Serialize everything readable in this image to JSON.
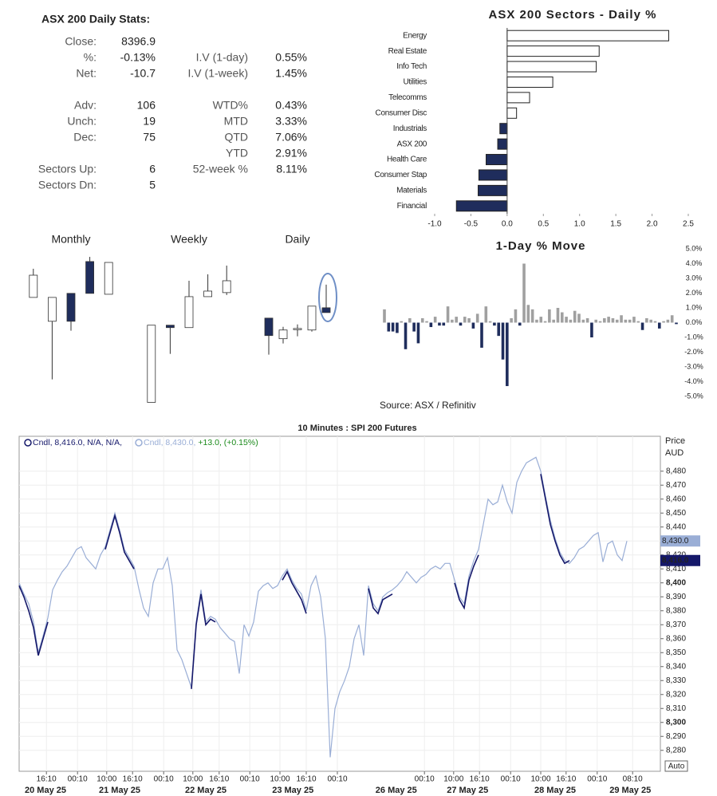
{
  "stats": {
    "title": "ASX 200 Daily Stats:",
    "left": [
      [
        {
          "label": "Close:",
          "value": "8396.9",
          "color": "#222222"
        },
        {
          "label": "%:",
          "value": "-0.13%",
          "color": "#b00000"
        },
        {
          "label": "Net:",
          "value": "-10.7",
          "color": "#b00000"
        }
      ],
      [
        {
          "label": "Adv:",
          "value": "106",
          "color": "#222222"
        },
        {
          "label": "Unch:",
          "value": "19",
          "color": "#777777"
        },
        {
          "label": "Dec:",
          "value": "75",
          "color": "#b00000"
        }
      ],
      [
        {
          "label": "Sectors Up:",
          "value": "6",
          "color": "#222222"
        },
        {
          "label": "Sectors Dn:",
          "value": "5",
          "color": "#b00000"
        }
      ]
    ],
    "right": [
      [
        {
          "label": "I.V (1-day)",
          "value": "0.55%",
          "color": "#222222"
        },
        {
          "label": "I.V (1-week)",
          "value": "1.45%",
          "color": "#222222"
        }
      ],
      [
        {
          "label": "WTD%",
          "value": "0.43%",
          "color": "#222222"
        },
        {
          "label": "MTD",
          "value": "3.33%",
          "color": "#222222"
        },
        {
          "label": "QTD",
          "value": "7.06%",
          "color": "#222222"
        },
        {
          "label": "YTD",
          "value": "2.91%",
          "color": "#222222"
        },
        {
          "label": "52-week %",
          "value": "8.11%",
          "color": "#222222"
        }
      ]
    ]
  },
  "chart_data": [
    {
      "type": "barh",
      "title": "ASX 200 Sectors - Daily %",
      "categories": [
        "Energy",
        "Real Estate",
        "Info Tech",
        "Utilities",
        "Telecomms",
        "Consumer Disc",
        "Industrials",
        "ASX 200",
        "Health Care",
        "Consumer Stap",
        "Materials",
        "Financial"
      ],
      "values": [
        2.23,
        1.27,
        1.23,
        0.63,
        0.31,
        0.13,
        -0.1,
        -0.13,
        -0.29,
        -0.39,
        -0.4,
        -0.7
      ],
      "positive_color": "#ffffff",
      "negative_color": "#1f2d5c",
      "edge_color": "#222222",
      "xlim": [
        -1,
        2.5
      ],
      "xticks": [
        {
          "value": -1,
          "label": "-1.0"
        },
        -0.5,
        {
          "value": 0,
          "label": "0.0"
        },
        0.5,
        {
          "value": 1,
          "label": "1.0"
        },
        1.5,
        {
          "value": 2,
          "label": "2.0"
        },
        2.5
      ]
    },
    {
      "type": "candlestick",
      "title": "Monthly",
      "up_color": "#ffffff",
      "down_color": "#1f2d5c",
      "ylim": [
        7400,
        8600
      ],
      "open": [
        8266,
        8077,
        8298,
        8550,
        8291
      ],
      "high": [
        8493,
        8266,
        8298,
        8587,
        8543
      ],
      "low": [
        8266,
        7617,
        8002,
        8298,
        8291
      ],
      "close": [
        8442,
        8266,
        8077,
        8298,
        8543
      ]
    },
    {
      "type": "candlestick",
      "title": "Weekly",
      "up_color": "#ffffff",
      "down_color": "#1f2d5c",
      "ylim": [
        7400,
        8600
      ],
      "open": [
        7435,
        8046,
        8027,
        8272,
        8304
      ],
      "high": [
        8046,
        8046,
        8398,
        8449,
        8518
      ],
      "low": [
        7435,
        7819,
        8027,
        8272,
        8285
      ],
      "close": [
        8046,
        8027,
        8272,
        8316,
        8398
      ]
    },
    {
      "type": "candlestick",
      "title": "Daily",
      "up_color": "#ffffff",
      "down_color": "#1f2d5c",
      "ylim": [
        7400,
        8600
      ],
      "open": [
        8102,
        7939,
        8014,
        8008,
        8184
      ],
      "high": [
        8102,
        8033,
        8052,
        8197,
        8367
      ],
      "low": [
        7813,
        7901,
        7958,
        7995,
        8146
      ],
      "close": [
        7964,
        8008,
        8020,
        8197,
        8146
      ]
    },
    {
      "type": "bar",
      "title": "1-Day % Move",
      "source": "Source: ASX / Refinitiv",
      "positive_color": "#a0a0a0",
      "negative_color": "#1f2d5c",
      "values": [
        0.9,
        -0.6,
        -0.6,
        -0.7,
        0.1,
        -1.8,
        0.3,
        -0.6,
        -1.4,
        0.3,
        0.1,
        -0.3,
        0.4,
        -0.2,
        -0.2,
        1.1,
        0.2,
        0.4,
        -0.2,
        0.4,
        0.3,
        -0.4,
        0.6,
        -1.7,
        1.1,
        0.1,
        -0.2,
        -0.9,
        -2.5,
        -4.3,
        0.3,
        0.9,
        -0.2,
        4.0,
        1.2,
        0.9,
        0.2,
        0.4,
        0.1,
        0.9,
        0.2,
        1.0,
        0.7,
        0.4,
        0.2,
        0.8,
        0.6,
        0.2,
        0.3,
        -1.0,
        0.2,
        0.1,
        0.3,
        0.4,
        0.3,
        0.2,
        0.5,
        0.2,
        0.2,
        0.4,
        0.1,
        -0.5,
        0.3,
        0.2,
        0.1,
        -0.4,
        0.1,
        0.2,
        0.5,
        -0.1
      ],
      "ylim": [
        -5,
        5
      ],
      "yticks": [
        {
          "value": 5,
          "label": "5.0%"
        },
        {
          "value": 4,
          "label": "4.0%"
        },
        {
          "value": 3,
          "label": "3.0%"
        },
        {
          "value": 2,
          "label": "2.0%"
        },
        {
          "value": 1,
          "label": "1.0%"
        },
        {
          "value": 0,
          "label": "0.0%"
        },
        {
          "value": -1,
          "label": "-1.0%"
        },
        {
          "value": -2,
          "label": "-2.0%"
        },
        {
          "value": -3,
          "label": "-3.0%"
        },
        {
          "value": -4,
          "label": "-4.0%"
        },
        {
          "value": -5,
          "label": "-5.0%"
        }
      ]
    },
    {
      "type": "line",
      "title": "10 Minutes : SPI 200 Futures",
      "y_label": "Price",
      "y_unit": "AUD",
      "auto_button": "Auto",
      "grid": true,
      "series": [
        {
          "name": "Cndl, 8,416.0, N/A, N/A,",
          "color": "#15186a",
          "last_label": "8,416.0",
          "values": [
            8398,
            8390,
            8380,
            8368,
            8348,
            8360,
            8372,
            null,
            null,
            null,
            null,
            null,
            null,
            null,
            null,
            null,
            null,
            null,
            8424,
            8436,
            8448,
            8436,
            8422,
            8416,
            8410,
            null,
            null,
            null,
            null,
            null,
            null,
            null,
            null,
            null,
            null,
            null,
            8324,
            8370,
            8392,
            8370,
            8374,
            8372,
            null,
            null,
            null,
            null,
            null,
            null,
            null,
            null,
            null,
            null,
            null,
            null,
            null,
            8402,
            8408,
            8400,
            8394,
            8388,
            8378,
            null,
            null,
            null,
            null,
            null,
            null,
            null,
            null,
            null,
            null,
            null,
            null,
            8396,
            8382,
            8378,
            8388,
            8390,
            8392,
            null,
            null,
            null,
            null,
            null,
            null,
            null,
            null,
            null,
            null,
            null,
            null,
            8400,
            8388,
            8382,
            8402,
            8412,
            8420,
            null,
            null,
            null,
            null,
            null,
            null,
            null,
            null,
            null,
            null,
            null,
            null,
            8478,
            8460,
            8442,
            8430,
            8420,
            8414,
            8416,
            null,
            null,
            null,
            null,
            null,
            null,
            null,
            null,
            null,
            null,
            null,
            null
          ]
        },
        {
          "name": "Cndl, 8,430.0,",
          "color": "#9aaed6",
          "last_label": "8,430.0",
          "change_label": "+13.0, (+0.15%)",
          "change_color": "#1a8a1a",
          "values": [
            8400,
            8392,
            8385,
            8372,
            8350,
            8362,
            8375,
            8395,
            8402,
            8408,
            8412,
            8418,
            8424,
            8426,
            8418,
            8414,
            8410,
            8420,
            8426,
            8438,
            8450,
            8438,
            8424,
            8418,
            8412,
            8396,
            8382,
            8376,
            8400,
            8410,
            8410,
            8418,
            8398,
            8352,
            8345,
            8335,
            8325,
            8372,
            8395,
            8372,
            8376,
            8374,
            8368,
            8364,
            8360,
            8358,
            8335,
            8370,
            8362,
            8372,
            8394,
            8398,
            8400,
            8396,
            8398,
            8405,
            8410,
            8402,
            8396,
            8392,
            8380,
            8398,
            8405,
            8390,
            8360,
            8275,
            8310,
            8322,
            8330,
            8340,
            8360,
            8370,
            8348,
            8398,
            8385,
            8380,
            8390,
            8393,
            8395,
            8398,
            8402,
            8408,
            8404,
            8400,
            8404,
            8406,
            8410,
            8412,
            8410,
            8414,
            8414,
            8402,
            8390,
            8385,
            8405,
            8416,
            8424,
            8442,
            8460,
            8456,
            8458,
            8470,
            8458,
            8450,
            8472,
            8480,
            8486,
            8488,
            8490,
            8480,
            8462,
            8445,
            8432,
            8422,
            8416,
            8414,
            8418,
            8424,
            8426,
            8430,
            8434,
            8436,
            8415,
            8428,
            8430,
            8420,
            8416,
            8430
          ]
        }
      ],
      "xlim": [
        0,
        134
      ],
      "xticks": [
        {
          "value": 5.7,
          "label": "16:10"
        },
        {
          "value": 12.2,
          "label": "00:10"
        },
        {
          "value": 18.3,
          "label": "10:00"
        },
        {
          "value": 23.7,
          "label": "16:10"
        },
        {
          "value": 30.2,
          "label": "00:10"
        },
        {
          "value": 36.3,
          "label": "10:00"
        },
        {
          "value": 41.8,
          "label": "16:10"
        },
        {
          "value": 48.2,
          "label": "00:10"
        },
        {
          "value": 54.5,
          "label": "10:00"
        },
        {
          "value": 60,
          "label": "16:10"
        },
        {
          "value": 66.5,
          "label": "00:10"
        },
        {
          "value": 84.7,
          "label": "00:10"
        },
        {
          "value": 90.8,
          "label": "10:00"
        },
        {
          "value": 96.2,
          "label": "16:10"
        },
        {
          "value": 102.7,
          "label": "00:10"
        },
        {
          "value": 109,
          "label": "10:00"
        },
        {
          "value": 114.3,
          "label": "16:10"
        },
        {
          "value": 120.8,
          "label": "00:10"
        },
        {
          "value": 128.2,
          "label": "08:10"
        }
      ],
      "date_ticks": [
        {
          "value": 5.5,
          "label": "20 May 25"
        },
        {
          "value": 21,
          "label": "21 May 25"
        },
        {
          "value": 39,
          "label": "22 May 25"
        },
        {
          "value": 57.2,
          "label": "23 May 25"
        },
        {
          "value": 78.8,
          "label": "26 May 25"
        },
        {
          "value": 93.7,
          "label": "27 May 25"
        },
        {
          "value": 112,
          "label": "28 May 25"
        },
        {
          "value": 127.7,
          "label": "29 May 25"
        }
      ],
      "ylim": [
        8265,
        8505
      ],
      "yticks": [
        {
          "value": 8280,
          "label": "8,280"
        },
        {
          "value": 8290,
          "label": "8,290"
        },
        {
          "value": 8300,
          "label": "8,300"
        },
        {
          "value": 8310,
          "label": "8,310"
        },
        {
          "value": 8320,
          "label": "8,320"
        },
        {
          "value": 8330,
          "label": "8,330"
        },
        {
          "value": 8340,
          "label": "8,340"
        },
        {
          "value": 8350,
          "label": "8,350"
        },
        {
          "value": 8360,
          "label": "8,360"
        },
        {
          "value": 8370,
          "label": "8,370"
        },
        {
          "value": 8380,
          "label": "8,380"
        },
        {
          "value": 8390,
          "label": "8,390"
        },
        {
          "value": 8400,
          "label": "8,400"
        },
        {
          "value": 8410,
          "label": "8,410"
        },
        {
          "value": 8420,
          "label": "8,420"
        },
        {
          "value": 8430,
          "label": "8,430"
        },
        {
          "value": 8440,
          "label": "8,440"
        },
        {
          "value": 8450,
          "label": "8,450"
        },
        {
          "value": 8460,
          "label": "8,460"
        },
        {
          "value": 8470,
          "label": "8,470"
        },
        {
          "value": 8480,
          "label": "8,480"
        }
      ]
    }
  ]
}
